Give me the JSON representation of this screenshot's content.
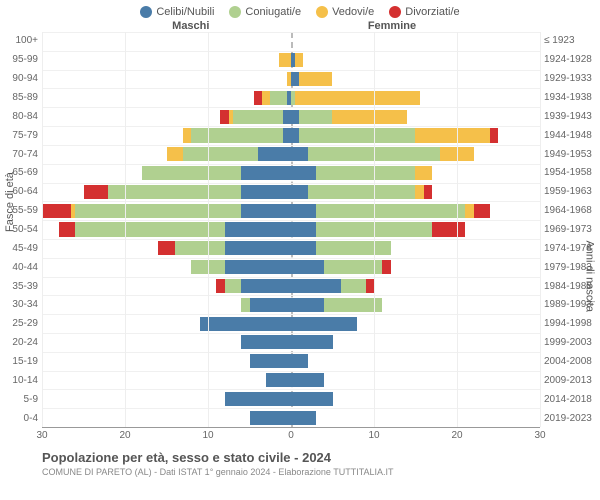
{
  "type": "population-pyramid",
  "legend": [
    {
      "label": "Celibi/Nubili",
      "color": "#4a7ca8"
    },
    {
      "label": "Coniugati/e",
      "color": "#b0d090"
    },
    {
      "label": "Vedovi/e",
      "color": "#f5c04a"
    },
    {
      "label": "Divorziati/e",
      "color": "#d43030"
    }
  ],
  "header_left": "Maschi",
  "header_right": "Femmine",
  "y_label_left": "Fasce di età",
  "y_label_right": "Anni di nascita",
  "title": "Popolazione per età, sesso e stato civile - 2024",
  "subtitle": "COMUNE DI PARETO (AL) - Dati ISTAT 1° gennaio 2024 - Elaborazione TUTTITALIA.IT",
  "x_ticks": [
    30,
    20,
    10,
    0,
    10,
    20,
    30
  ],
  "x_max": 30,
  "colors": {
    "celibi": "#4a7ca8",
    "coniugati": "#b0d090",
    "vedovi": "#f5c04a",
    "divorziati": "#d43030",
    "grid": "#eeeeee",
    "center": "#bbbbbb"
  },
  "age_bins": [
    {
      "age": "100+",
      "birth": "≤ 1923",
      "m": [
        0,
        0,
        0,
        0
      ],
      "f": [
        0,
        0,
        0,
        0
      ]
    },
    {
      "age": "95-99",
      "birth": "1924-1928",
      "m": [
        0,
        0,
        1.5,
        0
      ],
      "f": [
        0.5,
        0,
        1,
        0
      ]
    },
    {
      "age": "90-94",
      "birth": "1929-1933",
      "m": [
        0,
        0,
        0.5,
        0
      ],
      "f": [
        1,
        0,
        4,
        0
      ]
    },
    {
      "age": "85-89",
      "birth": "1934-1938",
      "m": [
        0.5,
        2,
        1,
        1
      ],
      "f": [
        0,
        0.5,
        15,
        0
      ]
    },
    {
      "age": "80-84",
      "birth": "1939-1943",
      "m": [
        1,
        6,
        0.5,
        1
      ],
      "f": [
        1,
        4,
        9,
        0
      ]
    },
    {
      "age": "75-79",
      "birth": "1944-1948",
      "m": [
        1,
        11,
        1,
        0
      ],
      "f": [
        1,
        14,
        9,
        1
      ]
    },
    {
      "age": "70-74",
      "birth": "1949-1953",
      "m": [
        4,
        9,
        2,
        0
      ],
      "f": [
        2,
        16,
        4,
        0
      ]
    },
    {
      "age": "65-69",
      "birth": "1954-1958",
      "m": [
        6,
        12,
        0,
        0
      ],
      "f": [
        3,
        12,
        2,
        0
      ]
    },
    {
      "age": "60-64",
      "birth": "1959-1963",
      "m": [
        6,
        16,
        0,
        3
      ],
      "f": [
        2,
        13,
        1,
        1
      ]
    },
    {
      "age": "55-59",
      "birth": "1964-1968",
      "m": [
        6,
        20,
        0.5,
        3.5
      ],
      "f": [
        3,
        18,
        1,
        2
      ]
    },
    {
      "age": "50-54",
      "birth": "1969-1973",
      "m": [
        8,
        18,
        0,
        2
      ],
      "f": [
        3,
        14,
        0,
        4
      ]
    },
    {
      "age": "45-49",
      "birth": "1974-1978",
      "m": [
        8,
        6,
        0,
        2
      ],
      "f": [
        3,
        9,
        0,
        0
      ]
    },
    {
      "age": "40-44",
      "birth": "1979-1983",
      "m": [
        8,
        4,
        0,
        0
      ],
      "f": [
        4,
        7,
        0,
        1
      ]
    },
    {
      "age": "35-39",
      "birth": "1984-1988",
      "m": [
        6,
        2,
        0,
        1
      ],
      "f": [
        6,
        3,
        0,
        1
      ]
    },
    {
      "age": "30-34",
      "birth": "1989-1993",
      "m": [
        5,
        1,
        0,
        0
      ],
      "f": [
        4,
        7,
        0,
        0
      ]
    },
    {
      "age": "25-29",
      "birth": "1994-1998",
      "m": [
        11,
        0,
        0,
        0
      ],
      "f": [
        8,
        0,
        0,
        0
      ]
    },
    {
      "age": "20-24",
      "birth": "1999-2003",
      "m": [
        6,
        0,
        0,
        0
      ],
      "f": [
        5,
        0,
        0,
        0
      ]
    },
    {
      "age": "15-19",
      "birth": "2004-2008",
      "m": [
        5,
        0,
        0,
        0
      ],
      "f": [
        2,
        0,
        0,
        0
      ]
    },
    {
      "age": "10-14",
      "birth": "2009-2013",
      "m": [
        3,
        0,
        0,
        0
      ],
      "f": [
        4,
        0,
        0,
        0
      ]
    },
    {
      "age": "5-9",
      "birth": "2014-2018",
      "m": [
        8,
        0,
        0,
        0
      ],
      "f": [
        5,
        0,
        0,
        0
      ]
    },
    {
      "age": "0-4",
      "birth": "2019-2023",
      "m": [
        5,
        0,
        0,
        0
      ],
      "f": [
        3,
        0,
        0,
        0
      ]
    }
  ]
}
